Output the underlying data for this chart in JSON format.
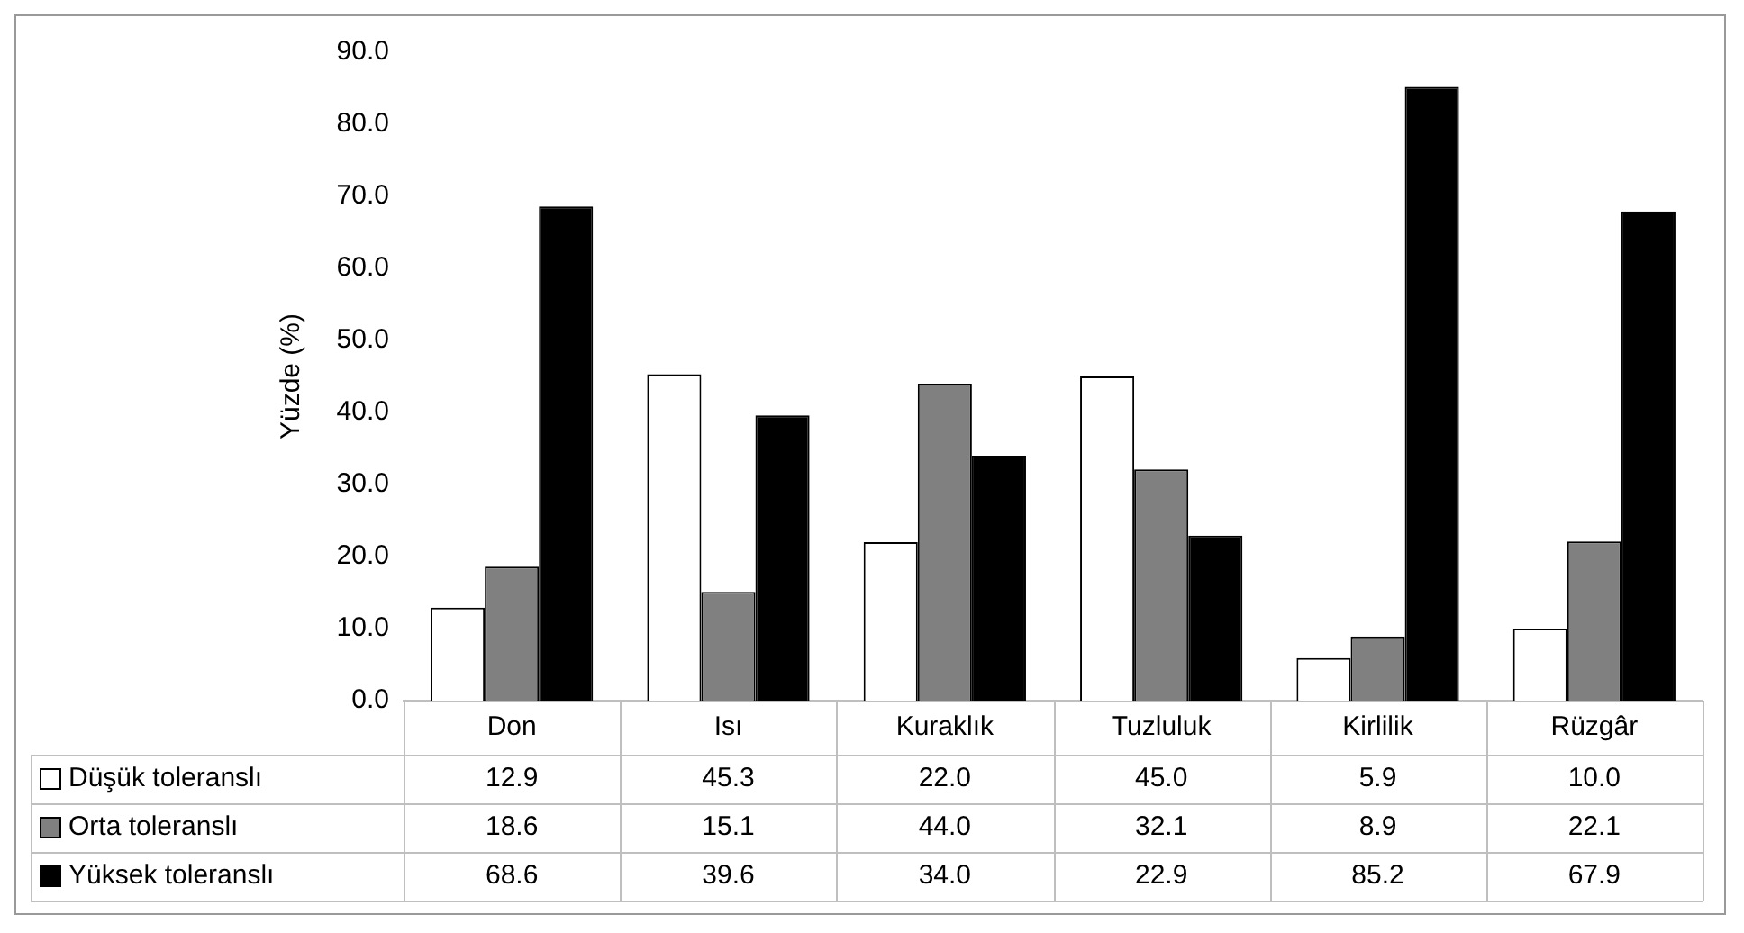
{
  "chart_data": {
    "type": "bar",
    "ylabel": "Yüzde (%)",
    "categories": [
      "Don",
      "Isı",
      "Kuraklık",
      "Tuzluluk",
      "Kirlilik",
      "Rüzgâr"
    ],
    "series": [
      {
        "name": "Düşük toleranslı",
        "color": "#ffffff",
        "values": [
          12.9,
          45.3,
          22.0,
          45.0,
          5.9,
          10.0
        ],
        "value_labels": [
          "12.9",
          "45.3",
          "22.0",
          "45.0",
          "5.9",
          "10.0"
        ]
      },
      {
        "name": "Orta toleranslı",
        "color": "#808080",
        "values": [
          18.6,
          15.1,
          44.0,
          32.1,
          8.9,
          22.1
        ],
        "value_labels": [
          "18.6",
          "15.1",
          "44.0",
          "32.1",
          "8.9",
          "22.1"
        ]
      },
      {
        "name": "Yüksek toleranslı",
        "color": "#000000",
        "values": [
          68.6,
          39.6,
          34.0,
          22.9,
          85.2,
          67.9
        ],
        "value_labels": [
          "68.6",
          "39.6",
          "34.0",
          "22.9",
          "85.2",
          "67.9"
        ]
      }
    ],
    "ylim": [
      0,
      90
    ],
    "yticks": [
      {
        "value": 0,
        "label": "0.0"
      },
      {
        "value": 10,
        "label": "10.0"
      },
      {
        "value": 20,
        "label": "20.0"
      },
      {
        "value": 30,
        "label": "30.0"
      },
      {
        "value": 40,
        "label": "40.0"
      },
      {
        "value": 50,
        "label": "50.0"
      },
      {
        "value": 60,
        "label": "60.0"
      },
      {
        "value": 70,
        "label": "70.0"
      },
      {
        "value": 80,
        "label": "80.0"
      },
      {
        "value": 90,
        "label": "90.0"
      }
    ],
    "grid": false,
    "legend": "bottom"
  }
}
